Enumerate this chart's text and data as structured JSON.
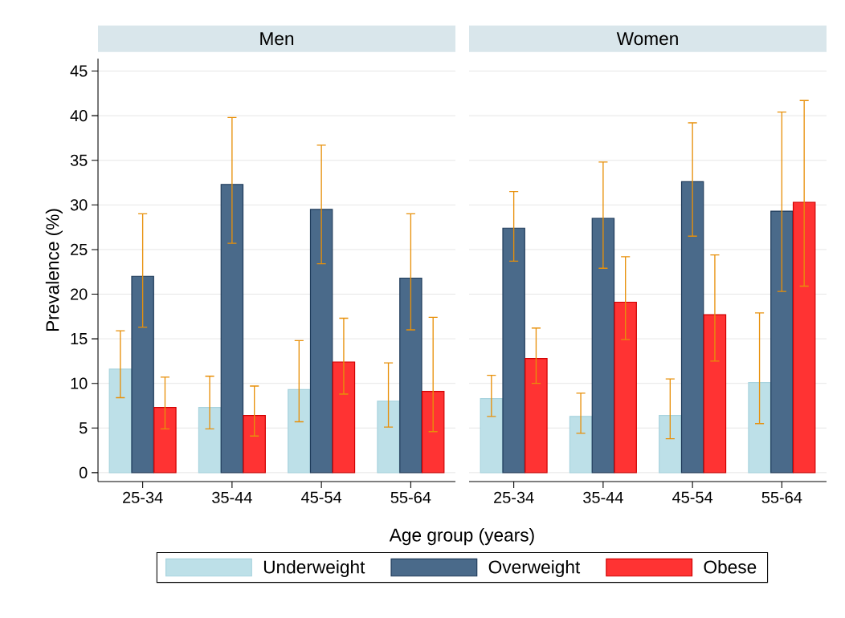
{
  "chart_data": [
    {
      "type": "bar",
      "title": "Men",
      "xlabel": "Age group (years)",
      "ylabel": "Prevalence (%)",
      "categories": [
        "25-34",
        "35-44",
        "45-54",
        "55-64"
      ],
      "ylim": [
        -1,
        46.4
      ],
      "yticks": [
        0,
        5,
        10,
        15,
        20,
        25,
        30,
        35,
        40,
        45
      ],
      "grid": "y",
      "legend": "bottom",
      "series": [
        {
          "name": "Underweight",
          "color": "#bde0e8",
          "values": [
            11.6,
            7.3,
            9.3,
            8.0
          ],
          "errors": [
            [
              8.4,
              15.9
            ],
            [
              4.9,
              10.8
            ],
            [
              5.7,
              14.8
            ],
            [
              5.1,
              12.3
            ]
          ]
        },
        {
          "name": "Overweight",
          "color": "#4a6a8a",
          "values": [
            22.0,
            32.3,
            29.5,
            21.8
          ],
          "errors": [
            [
              16.3,
              29.0
            ],
            [
              25.7,
              39.8
            ],
            [
              23.4,
              36.7
            ],
            [
              16.0,
              29.0
            ]
          ]
        },
        {
          "name": "Obese",
          "color": "#ff3333",
          "values": [
            7.3,
            6.4,
            12.4,
            9.1
          ],
          "errors": [
            [
              4.9,
              10.7
            ],
            [
              4.1,
              9.7
            ],
            [
              8.8,
              17.3
            ],
            [
              4.6,
              17.4
            ]
          ]
        }
      ]
    },
    {
      "type": "bar",
      "title": "Women",
      "categories": [
        "25-34",
        "35-44",
        "45-54",
        "55-64"
      ],
      "yticks": [
        0,
        5,
        10,
        15,
        20,
        25,
        30,
        35,
        40,
        45
      ],
      "grid": "y",
      "tick_labels": "x",
      "series": [
        {
          "color": "#bde0e8",
          "values": [
            8.3,
            6.3,
            6.4,
            10.1
          ],
          "errors": [
            [
              6.3,
              10.9
            ],
            [
              4.4,
              8.9
            ],
            [
              3.8,
              10.5
            ],
            [
              5.5,
              17.9
            ]
          ]
        },
        {
          "color": "#4a6a8a",
          "values": [
            27.4,
            28.5,
            32.6,
            29.3
          ],
          "errors": [
            [
              23.7,
              31.5
            ],
            [
              22.9,
              34.8
            ],
            [
              26.5,
              39.2
            ],
            [
              20.3,
              40.4
            ]
          ]
        },
        {
          "color": "#ff3333",
          "values": [
            12.8,
            19.1,
            17.7,
            30.3
          ],
          "errors": [
            [
              10.0,
              16.2
            ],
            [
              14.9,
              24.2
            ],
            [
              12.5,
              24.4
            ],
            [
              20.9,
              41.7
            ]
          ]
        }
      ]
    }
  ]
}
